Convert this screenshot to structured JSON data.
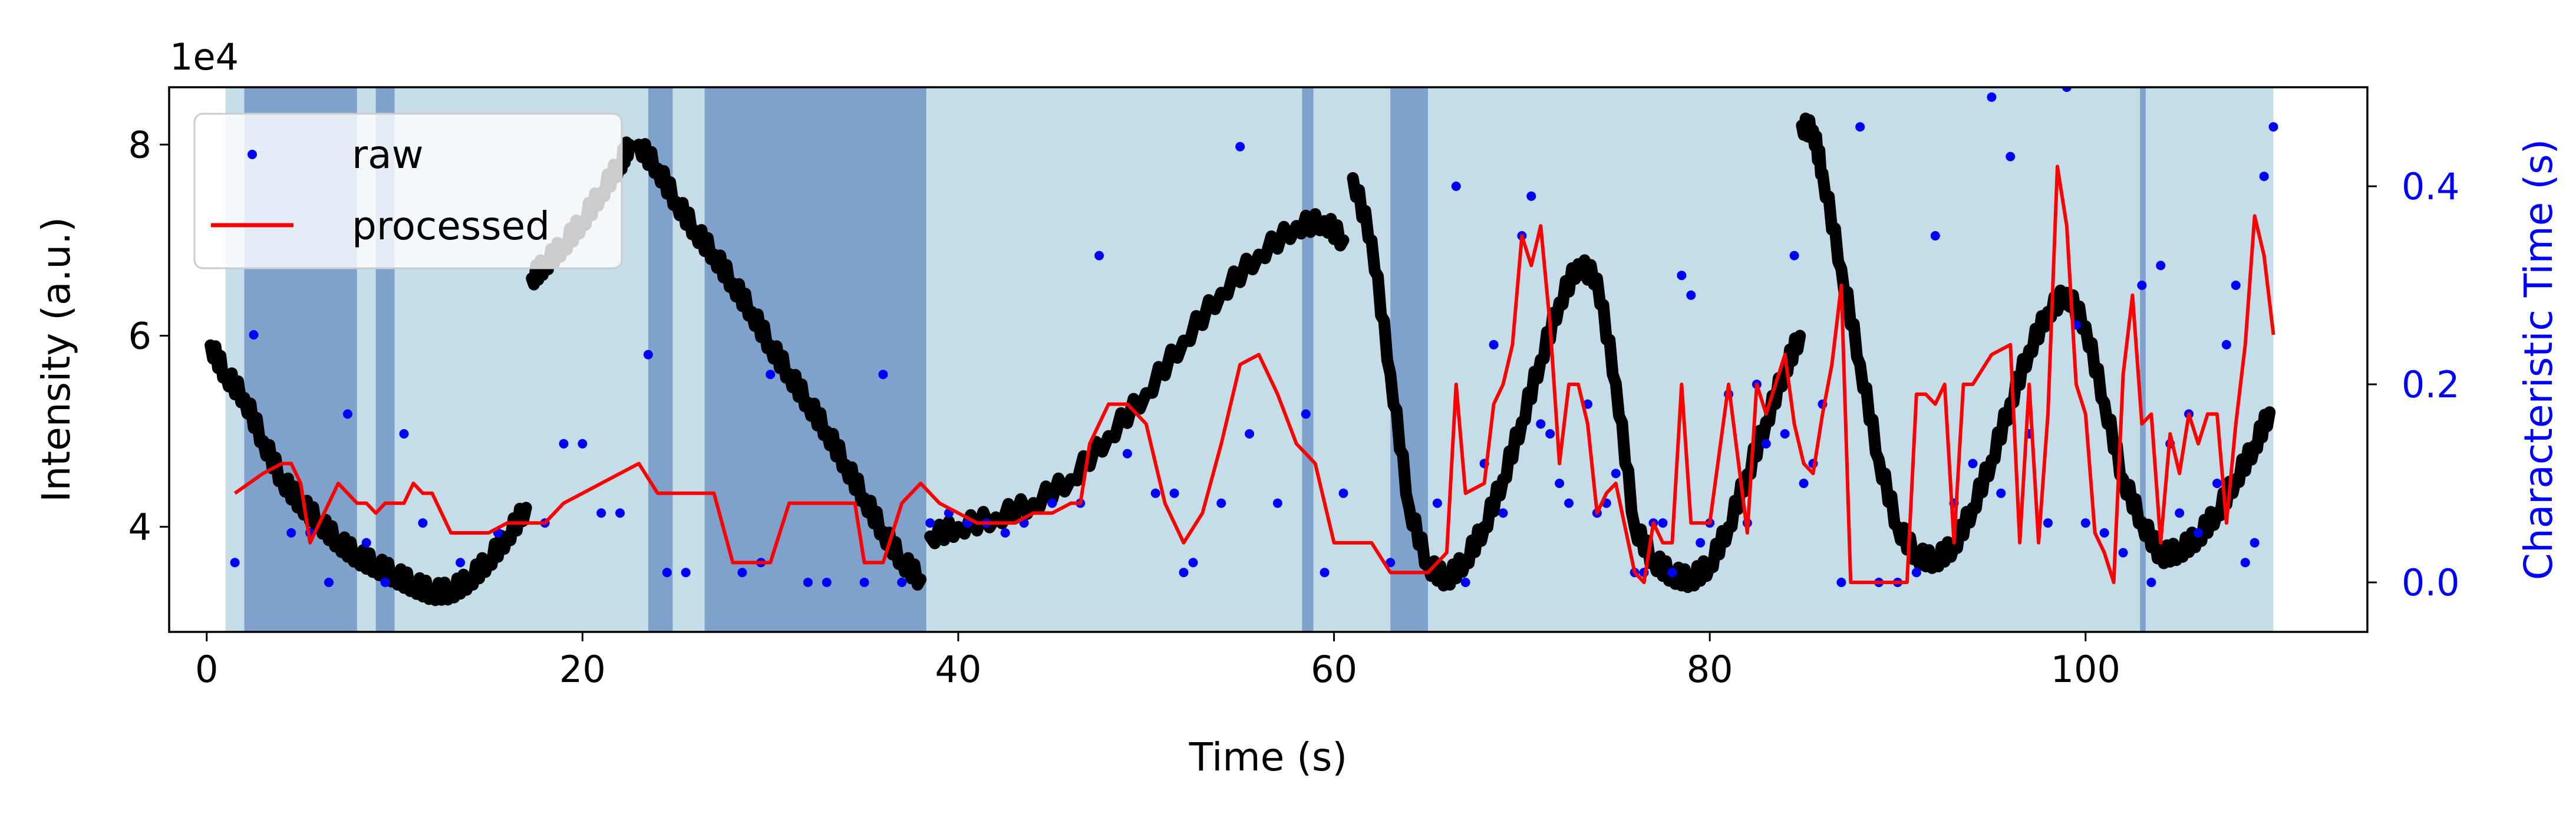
{
  "chart_data": {
    "type": "line",
    "xlabel": "Time (s)",
    "ylabel": "Intensity (a.u.)",
    "ylabel_right": "Characteristic Time (s)",
    "y_offset_text": "1e4",
    "xlim": [
      -2,
      115
    ],
    "ylim": [
      29000,
      86000
    ],
    "ylim_right": [
      -0.05,
      0.5
    ],
    "x_ticks": [
      0,
      20,
      40,
      60,
      80,
      100
    ],
    "y_ticks": [
      40000,
      60000,
      80000
    ],
    "y_tick_labels": [
      "4",
      "6",
      "8"
    ],
    "y_right_ticks": [
      0.0,
      0.2,
      0.4
    ],
    "y_right_tick_labels": [
      "0.0",
      "0.2",
      "0.4"
    ],
    "grid": false,
    "legend_position": "top-left",
    "legend": [
      {
        "label": "raw",
        "kind": "marker",
        "color": "#0000ff"
      },
      {
        "label": "processed",
        "kind": "line",
        "color": "#ff0000"
      }
    ],
    "colors": {
      "light_band": "#c5dde8",
      "dark_band": "#7fa2cc",
      "intensity": "#000000",
      "raw": "#0000ff",
      "processed": "#ff0000",
      "right_axis": "#0000ff"
    },
    "background_bands": [
      {
        "x0": 1.0,
        "x1": 110.0,
        "shade": "light"
      },
      {
        "x0": 2.0,
        "x1": 8.0,
        "shade": "dark"
      },
      {
        "x0": 9.0,
        "x1": 10.0,
        "shade": "dark"
      },
      {
        "x0": 23.5,
        "x1": 24.8,
        "shade": "dark"
      },
      {
        "x0": 26.5,
        "x1": 38.3,
        "shade": "dark"
      },
      {
        "x0": 58.3,
        "x1": 58.9,
        "shade": "dark"
      },
      {
        "x0": 63.0,
        "x1": 65.0,
        "shade": "dark"
      },
      {
        "x0": 102.9,
        "x1": 103.2,
        "shade": "dark"
      }
    ],
    "intensity_segments": [
      [
        [
          0.2,
          59000
        ],
        [
          1.0,
          56000
        ],
        [
          2.0,
          53500
        ],
        [
          3.0,
          49000
        ],
        [
          4.0,
          45000
        ],
        [
          5.0,
          42500
        ],
        [
          6.0,
          40500
        ],
        [
          7.0,
          38500
        ],
        [
          8.0,
          37000
        ],
        [
          9.0,
          36000
        ],
        [
          10.0,
          35000
        ],
        [
          11.0,
          34000
        ],
        [
          12.0,
          33200
        ],
        [
          13.0,
          33300
        ],
        [
          14.0,
          34500
        ],
        [
          15.0,
          36500
        ],
        [
          16.0,
          39000
        ],
        [
          17.0,
          42000
        ]
      ],
      [
        [
          17.3,
          66000
        ],
        [
          18.0,
          67500
        ],
        [
          19.0,
          69500
        ],
        [
          20.0,
          72000
        ],
        [
          21.0,
          75000
        ],
        [
          22.0,
          78000
        ],
        [
          22.5,
          80000
        ]
      ],
      [
        [
          23.0,
          80000
        ],
        [
          24.0,
          77500
        ],
        [
          25.0,
          74000
        ],
        [
          26.0,
          71000
        ],
        [
          27.0,
          68500
        ],
        [
          28.0,
          65500
        ],
        [
          29.0,
          62500
        ],
        [
          30.0,
          59000
        ],
        [
          31.0,
          56000
        ],
        [
          32.0,
          53000
        ],
        [
          33.0,
          50000
        ],
        [
          34.0,
          46500
        ],
        [
          35.0,
          43000
        ],
        [
          36.0,
          39500
        ],
        [
          37.0,
          36500
        ],
        [
          38.0,
          34500
        ]
      ],
      [
        [
          38.5,
          39000
        ],
        [
          40.0,
          40000
        ],
        [
          42.0,
          41000
        ],
        [
          44.0,
          42500
        ],
        [
          46.0,
          45000
        ],
        [
          48.0,
          49500
        ],
        [
          50.0,
          54000
        ],
        [
          52.0,
          59500
        ],
        [
          54.0,
          64500
        ],
        [
          56.0,
          68500
        ],
        [
          58.0,
          71500
        ],
        [
          59.5,
          72000
        ],
        [
          60.5,
          70000
        ]
      ],
      [
        [
          61.0,
          76500
        ],
        [
          62.0,
          70000
        ],
        [
          63.0,
          56000
        ],
        [
          64.0,
          42000
        ],
        [
          65.0,
          36000
        ],
        [
          66.0,
          34500
        ],
        [
          67.0,
          36500
        ],
        [
          68.0,
          40000
        ],
        [
          69.0,
          45000
        ],
        [
          70.0,
          51000
        ],
        [
          71.0,
          57500
        ],
        [
          72.0,
          63500
        ],
        [
          73.0,
          67500
        ],
        [
          74.0,
          66000
        ],
        [
          75.0,
          55000
        ],
        [
          76.0,
          40000
        ],
        [
          77.0,
          36500
        ],
        [
          78.0,
          35000
        ],
        [
          79.0,
          34500
        ],
        [
          80.0,
          36000
        ],
        [
          81.0,
          40000
        ],
        [
          82.0,
          45500
        ],
        [
          83.0,
          51000
        ],
        [
          84.0,
          56500
        ],
        [
          84.8,
          60000
        ]
      ],
      [
        [
          84.9,
          82000
        ],
        [
          85.5,
          81500
        ],
        [
          86.0,
          77000
        ],
        [
          87.0,
          67000
        ],
        [
          88.0,
          57000
        ],
        [
          89.0,
          47000
        ],
        [
          90.0,
          40000
        ],
        [
          91.0,
          37000
        ],
        [
          92.0,
          36500
        ],
        [
          93.0,
          38000
        ],
        [
          94.0,
          42000
        ],
        [
          95.0,
          47000
        ],
        [
          96.0,
          53000
        ],
        [
          97.0,
          58500
        ],
        [
          98.0,
          62500
        ],
        [
          99.0,
          64500
        ],
        [
          100.0,
          61000
        ],
        [
          101.0,
          53000
        ],
        [
          102.0,
          45000
        ],
        [
          103.0,
          40500
        ],
        [
          104.0,
          37000
        ],
        [
          105.0,
          37500
        ],
        [
          106.0,
          39000
        ],
        [
          107.0,
          41500
        ],
        [
          108.0,
          45000
        ],
        [
          109.0,
          48500
        ],
        [
          109.8,
          52000
        ]
      ]
    ],
    "raw_points": [
      [
        1.5,
        0.02
      ],
      [
        2.5,
        0.25
      ],
      [
        4.5,
        0.05
      ],
      [
        5.5,
        0.05
      ],
      [
        6.5,
        0.0
      ],
      [
        7.5,
        0.17
      ],
      [
        8.5,
        0.04
      ],
      [
        9.5,
        0.0
      ],
      [
        10.5,
        0.15
      ],
      [
        11.5,
        0.06
      ],
      [
        13.5,
        0.02
      ],
      [
        15.5,
        0.05
      ],
      [
        18.0,
        0.06
      ],
      [
        19.0,
        0.14
      ],
      [
        20.0,
        0.14
      ],
      [
        21.0,
        0.07
      ],
      [
        22.0,
        0.07
      ],
      [
        23.5,
        0.23
      ],
      [
        24.5,
        0.01
      ],
      [
        25.5,
        0.01
      ],
      [
        28.5,
        0.01
      ],
      [
        29.5,
        0.02
      ],
      [
        30.0,
        0.21
      ],
      [
        32.0,
        0.0
      ],
      [
        33.0,
        0.0
      ],
      [
        35.0,
        0.0
      ],
      [
        36.0,
        0.21
      ],
      [
        37.0,
        0.0
      ],
      [
        38.5,
        0.06
      ],
      [
        39.5,
        0.07
      ],
      [
        40.5,
        0.06
      ],
      [
        41.5,
        0.06
      ],
      [
        42.5,
        0.05
      ],
      [
        43.5,
        0.06
      ],
      [
        45.0,
        0.08
      ],
      [
        46.5,
        0.08
      ],
      [
        47.5,
        0.33
      ],
      [
        49.0,
        0.13
      ],
      [
        50.5,
        0.09
      ],
      [
        51.5,
        0.09
      ],
      [
        52.0,
        0.01
      ],
      [
        52.5,
        0.02
      ],
      [
        54.0,
        0.08
      ],
      [
        55.0,
        0.44
      ],
      [
        55.5,
        0.15
      ],
      [
        57.0,
        0.08
      ],
      [
        58.5,
        0.17
      ],
      [
        59.5,
        0.01
      ],
      [
        60.5,
        0.09
      ],
      [
        63.0,
        0.02
      ],
      [
        65.5,
        0.08
      ],
      [
        66.5,
        0.4
      ],
      [
        67.0,
        0.0
      ],
      [
        68.0,
        0.12
      ],
      [
        68.5,
        0.24
      ],
      [
        69.0,
        0.07
      ],
      [
        70.0,
        0.35
      ],
      [
        70.5,
        0.39
      ],
      [
        71.0,
        0.16
      ],
      [
        71.5,
        0.15
      ],
      [
        72.0,
        0.1
      ],
      [
        72.5,
        0.08
      ],
      [
        73.5,
        0.18
      ],
      [
        74.0,
        0.07
      ],
      [
        74.5,
        0.08
      ],
      [
        75.0,
        0.11
      ],
      [
        76.0,
        0.01
      ],
      [
        76.5,
        0.01
      ],
      [
        77.0,
        0.06
      ],
      [
        77.5,
        0.06
      ],
      [
        78.0,
        0.01
      ],
      [
        78.5,
        0.31
      ],
      [
        79.0,
        0.29
      ],
      [
        79.5,
        0.04
      ],
      [
        80.0,
        0.06
      ],
      [
        81.0,
        0.19
      ],
      [
        82.0,
        0.06
      ],
      [
        82.5,
        0.2
      ],
      [
        83.0,
        0.14
      ],
      [
        84.0,
        0.15
      ],
      [
        84.5,
        0.33
      ],
      [
        85.0,
        0.1
      ],
      [
        85.5,
        0.12
      ],
      [
        86.0,
        0.18
      ],
      [
        87.0,
        0.0
      ],
      [
        88.0,
        0.46
      ],
      [
        89.0,
        0.0
      ],
      [
        90.0,
        0.0
      ],
      [
        91.0,
        0.01
      ],
      [
        92.0,
        0.35
      ],
      [
        93.0,
        0.08
      ],
      [
        94.0,
        0.12
      ],
      [
        95.0,
        0.49
      ],
      [
        95.5,
        0.09
      ],
      [
        96.0,
        0.43
      ],
      [
        97.0,
        0.15
      ],
      [
        98.0,
        0.06
      ],
      [
        99.0,
        0.5
      ],
      [
        99.5,
        0.26
      ],
      [
        100.0,
        0.06
      ],
      [
        101.0,
        0.05
      ],
      [
        102.0,
        0.03
      ],
      [
        103.0,
        0.3
      ],
      [
        103.5,
        0.0
      ],
      [
        104.0,
        0.32
      ],
      [
        104.5,
        0.14
      ],
      [
        105.0,
        0.07
      ],
      [
        105.5,
        0.17
      ],
      [
        106.0,
        0.05
      ],
      [
        107.0,
        0.1
      ],
      [
        107.5,
        0.24
      ],
      [
        108.0,
        0.3
      ],
      [
        108.5,
        0.02
      ],
      [
        109.0,
        0.04
      ],
      [
        109.5,
        0.41
      ],
      [
        110.0,
        0.46
      ]
    ],
    "processed_line": [
      [
        1.5,
        0.09
      ],
      [
        3,
        0.11
      ],
      [
        4,
        0.12
      ],
      [
        4.5,
        0.12
      ],
      [
        5,
        0.1
      ],
      [
        5.5,
        0.04
      ],
      [
        6,
        0.06
      ],
      [
        6.5,
        0.08
      ],
      [
        7,
        0.1
      ],
      [
        7.5,
        0.09
      ],
      [
        8,
        0.08
      ],
      [
        8.5,
        0.08
      ],
      [
        9,
        0.07
      ],
      [
        9.5,
        0.08
      ],
      [
        10,
        0.08
      ],
      [
        10.5,
        0.08
      ],
      [
        11,
        0.1
      ],
      [
        11.5,
        0.09
      ],
      [
        12,
        0.09
      ],
      [
        13,
        0.05
      ],
      [
        14,
        0.05
      ],
      [
        15,
        0.05
      ],
      [
        16,
        0.06
      ],
      [
        17,
        0.06
      ],
      [
        18,
        0.06
      ],
      [
        19,
        0.08
      ],
      [
        20,
        0.09
      ],
      [
        21,
        0.1
      ],
      [
        22,
        0.11
      ],
      [
        23,
        0.12
      ],
      [
        24,
        0.09
      ],
      [
        25,
        0.09
      ],
      [
        26,
        0.09
      ],
      [
        26.5,
        0.09
      ],
      [
        27,
        0.09
      ],
      [
        28,
        0.02
      ],
      [
        29,
        0.02
      ],
      [
        30,
        0.02
      ],
      [
        31,
        0.08
      ],
      [
        32,
        0.08
      ],
      [
        33,
        0.08
      ],
      [
        34,
        0.08
      ],
      [
        34.5,
        0.08
      ],
      [
        35,
        0.02
      ],
      [
        36,
        0.02
      ],
      [
        37,
        0.08
      ],
      [
        38,
        0.1
      ],
      [
        39,
        0.08
      ],
      [
        40,
        0.07
      ],
      [
        41,
        0.06
      ],
      [
        42,
        0.06
      ],
      [
        43,
        0.06
      ],
      [
        44,
        0.07
      ],
      [
        45,
        0.07
      ],
      [
        46,
        0.08
      ],
      [
        46.5,
        0.08
      ],
      [
        47,
        0.14
      ],
      [
        48,
        0.18
      ],
      [
        49,
        0.18
      ],
      [
        50,
        0.16
      ],
      [
        51,
        0.08
      ],
      [
        52,
        0.04
      ],
      [
        53,
        0.07
      ],
      [
        54,
        0.14
      ],
      [
        55,
        0.22
      ],
      [
        56,
        0.23
      ],
      [
        57,
        0.19
      ],
      [
        58,
        0.14
      ],
      [
        59,
        0.12
      ],
      [
        60,
        0.04
      ],
      [
        61,
        0.04
      ],
      [
        62,
        0.04
      ],
      [
        63,
        0.01
      ],
      [
        64,
        0.01
      ],
      [
        65,
        0.01
      ],
      [
        66,
        0.03
      ],
      [
        66.5,
        0.2
      ],
      [
        67,
        0.09
      ],
      [
        68,
        0.1
      ],
      [
        68.5,
        0.18
      ],
      [
        69,
        0.2
      ],
      [
        69.5,
        0.24
      ],
      [
        70,
        0.35
      ],
      [
        70.5,
        0.32
      ],
      [
        71,
        0.36
      ],
      [
        71.5,
        0.26
      ],
      [
        72,
        0.12
      ],
      [
        72.5,
        0.2
      ],
      [
        73,
        0.2
      ],
      [
        73.5,
        0.16
      ],
      [
        74,
        0.07
      ],
      [
        74.5,
        0.09
      ],
      [
        75,
        0.1
      ],
      [
        76,
        0.01
      ],
      [
        76.5,
        0.0
      ],
      [
        77,
        0.06
      ],
      [
        77.5,
        0.04
      ],
      [
        78,
        0.04
      ],
      [
        78.5,
        0.2
      ],
      [
        79,
        0.06
      ],
      [
        79.5,
        0.06
      ],
      [
        80,
        0.06
      ],
      [
        81,
        0.2
      ],
      [
        82,
        0.05
      ],
      [
        82.5,
        0.2
      ],
      [
        83,
        0.17
      ],
      [
        84,
        0.23
      ],
      [
        84.5,
        0.16
      ],
      [
        85,
        0.12
      ],
      [
        85.5,
        0.11
      ],
      [
        86,
        0.17
      ],
      [
        86.5,
        0.22
      ],
      [
        87,
        0.3
      ],
      [
        87.5,
        0.0
      ],
      [
        88,
        0.0
      ],
      [
        89,
        0.0
      ],
      [
        90,
        0.0
      ],
      [
        90.5,
        0.0
      ],
      [
        91,
        0.19
      ],
      [
        91.5,
        0.19
      ],
      [
        92,
        0.18
      ],
      [
        92.5,
        0.2
      ],
      [
        93,
        0.04
      ],
      [
        93.5,
        0.2
      ],
      [
        94,
        0.2
      ],
      [
        95,
        0.23
      ],
      [
        96,
        0.24
      ],
      [
        96.5,
        0.04
      ],
      [
        97,
        0.2
      ],
      [
        97.5,
        0.04
      ],
      [
        98,
        0.17
      ],
      [
        98.5,
        0.42
      ],
      [
        99,
        0.36
      ],
      [
        99.5,
        0.2
      ],
      [
        100,
        0.17
      ],
      [
        100.5,
        0.05
      ],
      [
        101,
        0.03
      ],
      [
        101.5,
        0.0
      ],
      [
        102,
        0.21
      ],
      [
        102.5,
        0.29
      ],
      [
        103,
        0.16
      ],
      [
        103.5,
        0.17
      ],
      [
        104,
        0.04
      ],
      [
        104.5,
        0.15
      ],
      [
        105,
        0.11
      ],
      [
        105.5,
        0.17
      ],
      [
        106,
        0.14
      ],
      [
        106.5,
        0.17
      ],
      [
        107,
        0.17
      ],
      [
        107.5,
        0.06
      ],
      [
        108,
        0.16
      ],
      [
        108.5,
        0.24
      ],
      [
        109,
        0.37
      ],
      [
        109.5,
        0.33
      ],
      [
        110,
        0.25
      ]
    ]
  }
}
